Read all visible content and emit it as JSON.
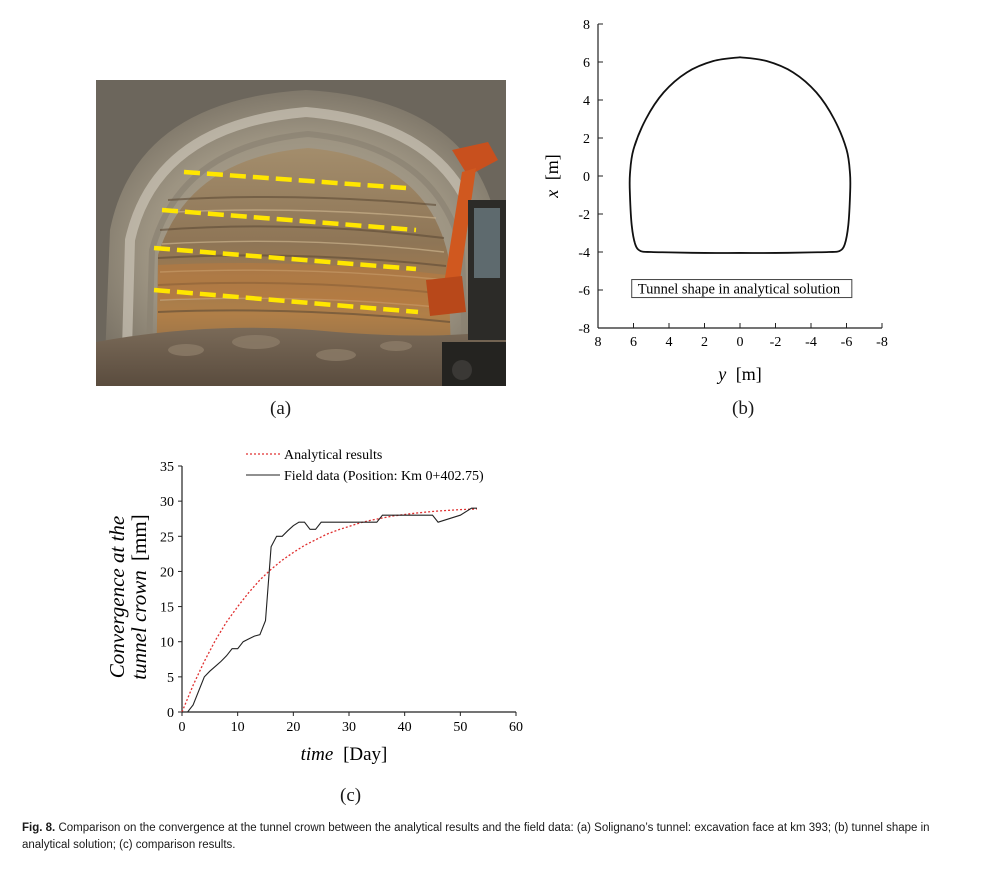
{
  "panel_labels": {
    "a": "(a)",
    "b": "(b)",
    "c": "(c)"
  },
  "caption": {
    "label": "Fig. 8.",
    "text": "Comparison on the convergence at the tunnel crown between the analytical results and the field data: (a) Solignano’s tunnel: excavation face at km 393; (b) tunnel shape in analytical solution; (c) comparison results."
  },
  "chart_data": [
    {
      "type": "line",
      "panel": "b",
      "xlabel_var": "y",
      "xlabel_unit": "[m]",
      "ylabel_var": "x",
      "ylabel_unit": "[m]",
      "xlim": [
        8,
        -8
      ],
      "ylim": [
        -8,
        8
      ],
      "x_ticks": [
        8,
        6,
        4,
        2,
        0,
        -2,
        -4,
        -6,
        -8
      ],
      "y_ticks": [
        8,
        6,
        4,
        2,
        0,
        -2,
        -4,
        -6,
        -8
      ],
      "x_tick_labels": [
        "8",
        "6",
        "4",
        "2",
        "0",
        "-2",
        "-4",
        "-6",
        "-8"
      ],
      "y_tick_labels": [
        "8",
        "6",
        "4",
        "2",
        "0",
        "-2",
        "-4",
        "-6",
        "-8"
      ],
      "annotation": "Tunnel shape in analytical solution",
      "tunnel_shape": {
        "y": [
          0,
          1.5,
          3,
          4.3,
          5.3,
          6.0,
          6.2,
          6.2,
          6.1,
          5.9,
          5.6,
          5.0,
          4.0,
          2.0,
          0,
          -2.0,
          -4.0,
          -5.0,
          -5.6,
          -5.9,
          -6.1,
          -6.2,
          -6.2,
          -6.0,
          -5.3,
          -4.3,
          -3.0,
          -1.5,
          0
        ],
        "x": [
          6.25,
          6.05,
          5.45,
          4.4,
          3.0,
          1.4,
          0.1,
          -1.0,
          -2.6,
          -3.6,
          -3.95,
          -4.0,
          -4.02,
          -4.05,
          -4.05,
          -4.05,
          -4.02,
          -4.0,
          -3.95,
          -3.6,
          -2.6,
          -1.0,
          0.1,
          1.4,
          3.0,
          4.4,
          5.45,
          6.05,
          6.25
        ]
      }
    },
    {
      "type": "line",
      "panel": "c",
      "xlabel_var": "time",
      "xlabel_unit": "[Day]",
      "ylabel_line1": "Convergence at the",
      "ylabel_line2_var": "tunnel crown",
      "ylabel_line2_unit": "[mm]",
      "xlim": [
        0,
        60
      ],
      "ylim": [
        0,
        35
      ],
      "x_ticks": [
        0,
        10,
        20,
        30,
        40,
        50,
        60
      ],
      "y_ticks": [
        0,
        5,
        10,
        15,
        20,
        25,
        30,
        35
      ],
      "x_tick_labels": [
        "0",
        "10",
        "20",
        "30",
        "40",
        "50",
        "60"
      ],
      "y_tick_labels": [
        "0",
        "5",
        "10",
        "15",
        "20",
        "25",
        "30",
        "35"
      ],
      "legend_placement": "top",
      "series": [
        {
          "name": "Analytical results",
          "color": "#e03030",
          "dash": "dotted",
          "x": [
            0,
            2,
            4,
            6,
            8,
            10,
            12,
            14,
            16,
            18,
            20,
            22,
            24,
            26,
            28,
            30,
            32,
            34,
            36,
            38,
            40,
            42,
            44,
            46,
            48,
            50,
            52,
            53
          ],
          "y": [
            0,
            3.8,
            7.2,
            10.2,
            12.8,
            15.0,
            17.0,
            18.8,
            20.3,
            21.6,
            22.7,
            23.7,
            24.5,
            25.3,
            25.9,
            26.4,
            26.9,
            27.3,
            27.6,
            27.9,
            28.1,
            28.3,
            28.45,
            28.6,
            28.7,
            28.8,
            28.85,
            28.9
          ]
        },
        {
          "name": "Field data (Position: Km 0+402.75)",
          "color": "#222222",
          "dash": "solid",
          "x": [
            0,
            1,
            2,
            3,
            4,
            5,
            6,
            7,
            8,
            9,
            10,
            11,
            12,
            13,
            14,
            15,
            16,
            17,
            18,
            19,
            20,
            21,
            22,
            23,
            24,
            25,
            26,
            30,
            34,
            35,
            36,
            40,
            45,
            46,
            48,
            50,
            52,
            53
          ],
          "y": [
            0,
            0,
            1,
            3,
            5,
            5.8,
            6.5,
            7.2,
            8,
            9,
            9,
            10,
            10.4,
            10.8,
            11,
            13,
            23.5,
            25,
            25,
            25.8,
            26.5,
            27,
            27,
            26,
            26,
            27,
            27,
            27,
            27,
            27,
            28,
            28,
            28,
            27,
            27.5,
            28,
            29,
            29
          ]
        }
      ]
    }
  ]
}
